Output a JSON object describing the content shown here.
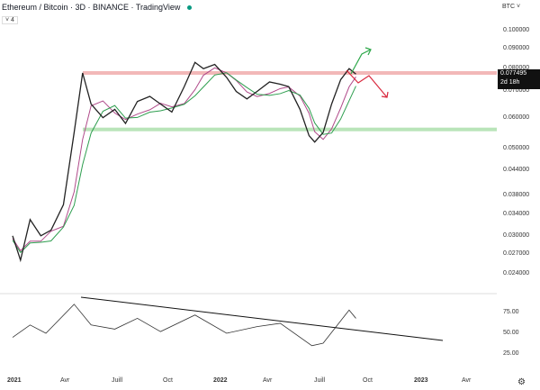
{
  "header": {
    "title": "Ethereum / Bitcoin · 3D · BINANCE · TradingView",
    "indicator_count": "4",
    "status_color": "#089981"
  },
  "currency_menu": "BTC",
  "price_tag": {
    "value": "0.077495",
    "countdown": "2d 18h"
  },
  "colors": {
    "resistance": "#f2b8b8",
    "support": "#b9e4b9",
    "price": "#222222",
    "ma_green": "#2e9e4f",
    "ma_purple": "#b04a8a",
    "arrow_up": "#2ea84a",
    "arrow_down": "#d9283d"
  },
  "chart_data": {
    "type": "line",
    "yscale": "log",
    "y_ticks": [
      "0.100000",
      "0.090000",
      "0.080000",
      "0.070000",
      "0.060000",
      "0.050000",
      "0.044000",
      "0.038000",
      "0.034000",
      "0.030000",
      "0.027000",
      "0.024000"
    ],
    "x_ticks": [
      "2021",
      "Avr",
      "Juill",
      "Oct",
      "2022",
      "Avr",
      "Juill",
      "Oct",
      "2023",
      "Avr"
    ],
    "resistance": 0.078,
    "support": 0.056,
    "series": [
      [
        "2021-01-01",
        0.03
      ],
      [
        "2021-01-15",
        0.026
      ],
      [
        "2021-02-01",
        0.033
      ],
      [
        "2021-02-20",
        0.03
      ],
      [
        "2021-03-10",
        0.031
      ],
      [
        "2021-04-01",
        0.036
      ],
      [
        "2021-04-20",
        0.055
      ],
      [
        "2021-05-05",
        0.078
      ],
      [
        "2021-05-20",
        0.065
      ],
      [
        "2021-06-10",
        0.06
      ],
      [
        "2021-07-01",
        0.063
      ],
      [
        "2021-07-20",
        0.058
      ],
      [
        "2021-08-10",
        0.066
      ],
      [
        "2021-09-01",
        0.068
      ],
      [
        "2021-09-20",
        0.065
      ],
      [
        "2021-10-10",
        0.062
      ],
      [
        "2021-11-01",
        0.072
      ],
      [
        "2021-11-20",
        0.083
      ],
      [
        "2021-12-05",
        0.08
      ],
      [
        "2021-12-25",
        0.082
      ],
      [
        "2022-01-15",
        0.076
      ],
      [
        "2022-02-01",
        0.07
      ],
      [
        "2022-02-20",
        0.067
      ],
      [
        "2022-03-10",
        0.07
      ],
      [
        "2022-04-01",
        0.074
      ],
      [
        "2022-04-20",
        0.073
      ],
      [
        "2022-05-05",
        0.072
      ],
      [
        "2022-05-25",
        0.063
      ],
      [
        "2022-06-10",
        0.054
      ],
      [
        "2022-06-20",
        0.052
      ],
      [
        "2022-07-05",
        0.055
      ],
      [
        "2022-07-20",
        0.065
      ],
      [
        "2022-08-05",
        0.075
      ],
      [
        "2022-08-20",
        0.08
      ],
      [
        "2022-09-01",
        0.0775
      ]
    ],
    "rsi": {
      "y_ticks": [
        "75.00",
        "50.00",
        "25.00"
      ],
      "series": [
        [
          "2021-01-01",
          45
        ],
        [
          "2021-02-01",
          60
        ],
        [
          "2021-03-01",
          50
        ],
        [
          "2021-04-20",
          85
        ],
        [
          "2021-05-20",
          60
        ],
        [
          "2021-07-01",
          55
        ],
        [
          "2021-08-10",
          68
        ],
        [
          "2021-09-20",
          52
        ],
        [
          "2021-11-20",
          72
        ],
        [
          "2022-01-15",
          50
        ],
        [
          "2022-03-10",
          58
        ],
        [
          "2022-04-20",
          62
        ],
        [
          "2022-06-15",
          35
        ],
        [
          "2022-07-05",
          38
        ],
        [
          "2022-08-05",
          65
        ],
        [
          "2022-08-20",
          78
        ],
        [
          "2022-09-01",
          68
        ]
      ]
    }
  }
}
